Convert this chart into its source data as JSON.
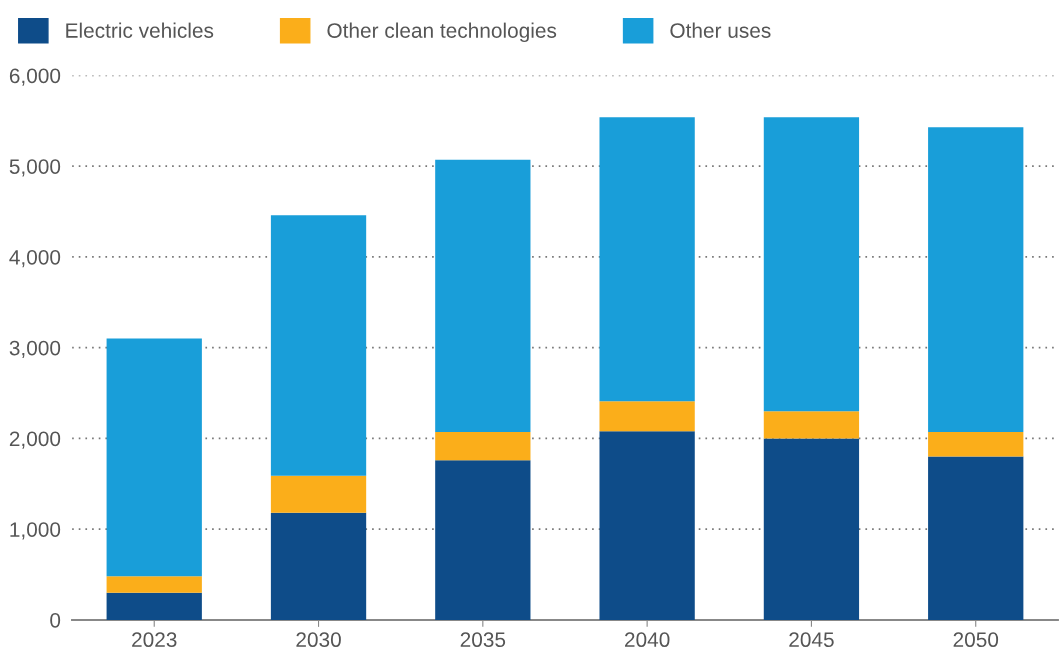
{
  "chart_data": {
    "type": "bar",
    "stacked": true,
    "categories": [
      "2023",
      "2030",
      "2035",
      "2040",
      "2045",
      "2050"
    ],
    "series": [
      {
        "name": "Electric vehicles",
        "color": "#0e4c89",
        "values": [
          300,
          1180,
          1760,
          2080,
          2000,
          1800
        ]
      },
      {
        "name": "Other clean technologies",
        "color": "#fbae1a",
        "values": [
          180,
          410,
          310,
          330,
          300,
          270
        ]
      },
      {
        "name": "Other uses",
        "color": "#199ed9",
        "values": [
          2620,
          2870,
          3000,
          3130,
          3240,
          3360
        ]
      }
    ],
    "ylim": [
      0,
      6000
    ],
    "yticks": [
      {
        "value": 0,
        "label": "0"
      },
      {
        "value": 1000,
        "label": "1,000"
      },
      {
        "value": 2000,
        "label": "2,000"
      },
      {
        "value": 3000,
        "label": "3,000"
      },
      {
        "value": 4000,
        "label": "4,000"
      },
      {
        "value": 5000,
        "label": "5,000"
      },
      {
        "value": 6000,
        "label": "6,000"
      }
    ],
    "grid": "y",
    "legend": "top left"
  }
}
